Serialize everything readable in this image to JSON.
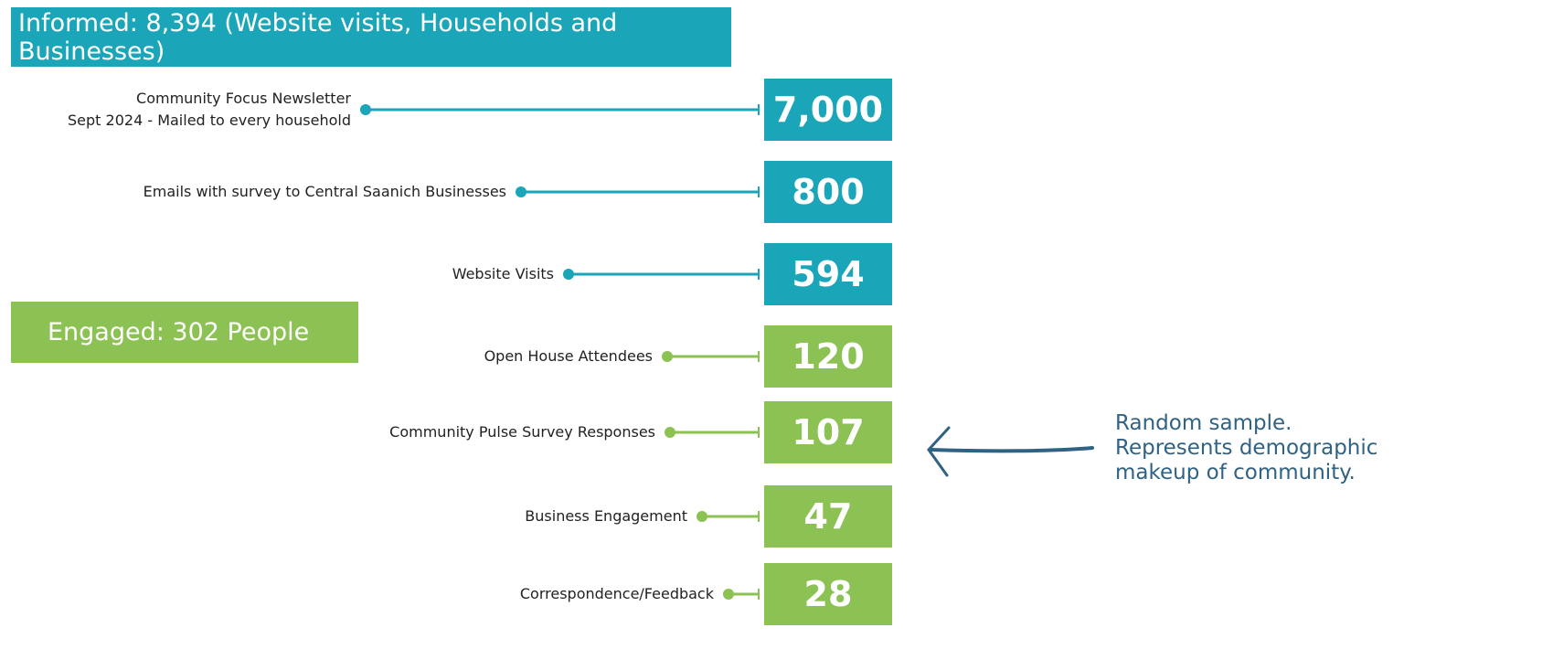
{
  "informed_header": "Informed: 8,394 (Website visits, Households and Businesses)",
  "engaged_header": "Engaged: 302 People",
  "items": [
    {
      "label": [
        "Community Focus Newsletter",
        "Sept 2024 - Mailed to every household"
      ],
      "value": "7,000",
      "color": "#1aa5b8"
    },
    {
      "label": [
        "Emails with survey to Central Saanich Businesses"
      ],
      "value": "800",
      "color": "#1aa5b8"
    },
    {
      "label": [
        "Website Visits"
      ],
      "value": "594",
      "color": "#1aa5b8"
    },
    {
      "label": [
        "Open House Attendees"
      ],
      "value": "120",
      "color": "#8cc153"
    },
    {
      "label": [
        "Community Pulse Survey Responses"
      ],
      "value": "107",
      "color": "#8cc153"
    },
    {
      "label": [
        "Business Engagement"
      ],
      "value": "47",
      "color": "#8cc153"
    },
    {
      "label": [
        "Correspondence/Feedback"
      ],
      "value": "28",
      "color": "#8cc153"
    }
  ],
  "note": [
    "Random sample.",
    "Represents demographic",
    "makeup of community."
  ]
}
